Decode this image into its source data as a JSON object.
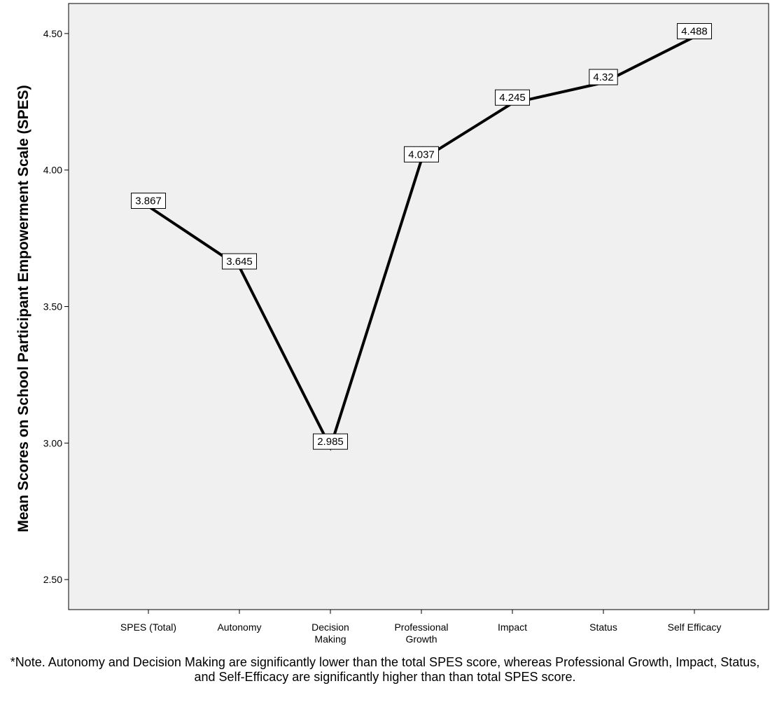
{
  "chart_data": {
    "type": "line",
    "categories": [
      [
        "SPES (Total)"
      ],
      [
        "Autonomy"
      ],
      [
        "Decision",
        "Making"
      ],
      [
        "Professional",
        "Growth"
      ],
      [
        "Impact"
      ],
      [
        "Status"
      ],
      [
        "Self Efficacy"
      ]
    ],
    "values": [
      3.867,
      3.645,
      2.985,
      4.037,
      4.245,
      4.32,
      4.488
    ],
    "data_labels": [
      "3.867",
      "3.645",
      "2.985",
      "4.037",
      "4.245",
      "4.32",
      "4.488"
    ],
    "ylabel": "Mean Scores on School Participant Empowerment Scale (SPES)",
    "xlabel": "",
    "ylim": [
      2.39,
      4.61
    ],
    "yticks": [
      2.5,
      3.0,
      3.5,
      4.0,
      4.5
    ],
    "ytick_labels": [
      "2.50",
      "3.00",
      "3.50",
      "4.00",
      "4.50"
    ],
    "grid": false,
    "colors": {
      "plot_background": "#f0f0f0",
      "line": "#000000",
      "label_box": "#ffffff"
    }
  },
  "note": "*Note. Autonomy and Decision Making are significantly lower than the total SPES score, whereas Professional Growth, Impact, Status, and Self-Efficacy are significantly higher than than total SPES score."
}
